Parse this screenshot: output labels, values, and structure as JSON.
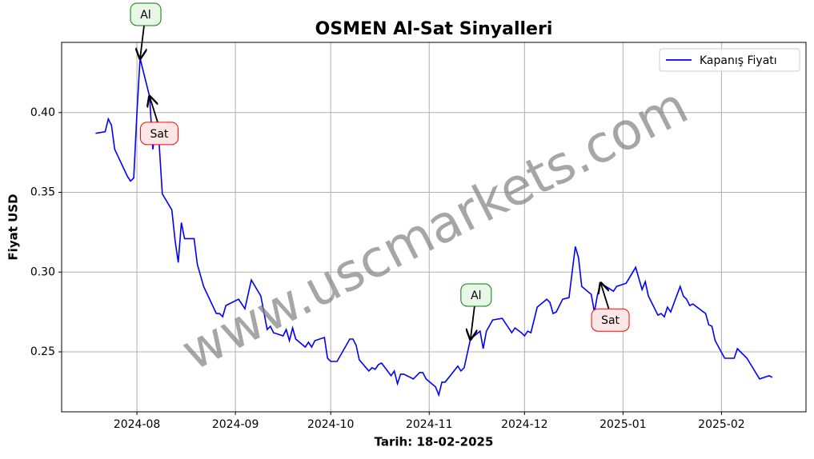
{
  "chart_data": {
    "type": "line",
    "title": "OSMEN Al-Sat Sinyalleri",
    "xlabel": "Tarih: 18-02-2025",
    "ylabel": "Fiyat USD",
    "watermark": "www.uscmarkets.com",
    "legend": "upper right",
    "grid": true,
    "xlim": [
      -23.7,
      210.6
    ],
    "ylim": [
      0.2124,
      0.444
    ],
    "xticks": [
      {
        "value": 0,
        "label": "2024-08"
      },
      {
        "value": 31,
        "label": "2024-09"
      },
      {
        "value": 61,
        "label": "2024-10"
      },
      {
        "value": 92,
        "label": "2024-11"
      },
      {
        "value": 122,
        "label": "2024-12"
      },
      {
        "value": 153,
        "label": "2025-01"
      },
      {
        "value": 184,
        "label": "2025-02"
      }
    ],
    "yticks": [
      0.25,
      {
        "value": 0.3,
        "label": "0.30"
      },
      0.35,
      {
        "value": 0.4,
        "label": "0.40"
      }
    ],
    "series": [
      {
        "name": "Kapanış Fiyatı",
        "color": "#0000ff",
        "x": [
          -13,
          -10,
          -9,
          -8,
          -7,
          -3,
          -2,
          -1,
          0,
          1,
          4,
          5,
          6,
          7,
          8,
          11,
          12,
          13,
          14,
          15,
          18,
          19,
          21,
          25,
          26,
          27,
          28,
          32,
          34,
          36,
          39,
          41,
          42,
          43,
          46,
          47,
          48,
          49,
          50,
          53,
          54,
          55,
          56,
          59,
          60,
          61,
          62,
          63,
          67,
          68,
          69,
          70,
          73,
          74,
          75,
          76,
          77,
          80,
          81,
          82,
          83,
          84,
          87,
          89,
          90,
          91,
          94,
          95,
          96,
          97,
          101,
          102,
          103,
          105,
          108,
          109,
          110,
          112,
          115,
          118,
          119,
          121,
          122,
          123,
          124,
          126,
          129,
          130,
          131,
          132,
          134,
          136,
          138,
          139,
          140,
          143,
          144,
          145,
          146,
          150,
          151,
          154,
          157,
          159,
          160,
          161,
          164,
          165,
          166,
          167,
          168,
          171,
          172,
          173,
          174,
          175,
          179,
          180,
          181,
          182,
          185,
          188,
          189,
          192,
          196,
          199,
          200
        ],
        "values": [
          0.387,
          0.388,
          0.396,
          0.392,
          0.377,
          0.36,
          0.357,
          0.359,
          0.4,
          0.434,
          0.41,
          0.377,
          0.39,
          0.38,
          0.349,
          0.339,
          0.32,
          0.306,
          0.331,
          0.321,
          0.321,
          0.305,
          0.291,
          0.274,
          0.274,
          0.272,
          0.279,
          0.283,
          0.277,
          0.295,
          0.285,
          0.264,
          0.266,
          0.262,
          0.26,
          0.264,
          0.257,
          0.265,
          0.258,
          0.253,
          0.256,
          0.253,
          0.257,
          0.259,
          0.246,
          0.244,
          0.244,
          0.244,
          0.258,
          0.258,
          0.254,
          0.245,
          0.238,
          0.24,
          0.239,
          0.242,
          0.243,
          0.235,
          0.238,
          0.23,
          0.236,
          0.236,
          0.233,
          0.237,
          0.237,
          0.233,
          0.228,
          0.223,
          0.231,
          0.231,
          0.241,
          0.238,
          0.24,
          0.258,
          0.263,
          0.252,
          0.263,
          0.27,
          0.271,
          0.262,
          0.265,
          0.262,
          0.26,
          0.263,
          0.262,
          0.278,
          0.283,
          0.281,
          0.274,
          0.275,
          0.283,
          0.284,
          0.316,
          0.309,
          0.291,
          0.286,
          0.275,
          0.286,
          0.293,
          0.288,
          0.291,
          0.293,
          0.303,
          0.289,
          0.294,
          0.285,
          0.273,
          0.274,
          0.272,
          0.278,
          0.275,
          0.291,
          0.285,
          0.283,
          0.279,
          0.28,
          0.274,
          0.267,
          0.266,
          0.257,
          0.246,
          0.246,
          0.252,
          0.246,
          0.233,
          0.235,
          0.234
        ]
      }
    ],
    "annotations": [
      {
        "text": "Al",
        "x": 1,
        "y": 0.434,
        "color": "green"
      },
      {
        "text": "Sat",
        "x": 4,
        "y": 0.41,
        "color": "red"
      },
      {
        "text": "Al",
        "x": 105,
        "y": 0.258,
        "color": "green"
      },
      {
        "text": "Sat",
        "x": 146,
        "y": 0.293,
        "color": "red"
      }
    ]
  }
}
